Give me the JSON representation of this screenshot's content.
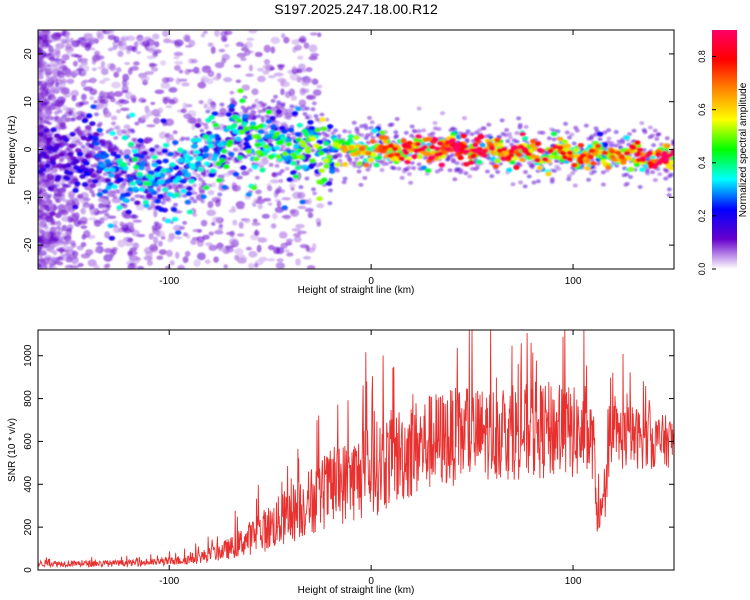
{
  "title": "S197.2025.247.18.00.R12",
  "chart_data": [
    {
      "type": "heatmap",
      "xlabel": "Height of straight line (km)",
      "ylabel": "Frequency (Hz)",
      "xlim": [
        -165,
        150
      ],
      "ylim": [
        -25,
        25
      ],
      "xticks": [
        -100,
        0,
        100
      ],
      "xtick_labels": [
        "-100",
        "0",
        "100"
      ],
      "yticks": [
        -20,
        -10,
        0,
        10,
        20
      ],
      "ytick_labels": [
        "-20",
        "-10",
        "0",
        "10",
        "20"
      ],
      "grid": false,
      "description_points": {
        "height_km": [
          -160,
          -140,
          -120,
          -100,
          -80,
          -60,
          -40,
          -20,
          0,
          20,
          40,
          60,
          80,
          100,
          120,
          148
        ],
        "peak_frequency_hz": [
          -2,
          -2,
          -4,
          -6,
          0,
          3,
          1,
          0,
          0,
          0,
          0,
          0,
          -1,
          -1,
          -1,
          -2
        ],
        "normalized_amplitude": [
          0.15,
          0.2,
          0.35,
          0.3,
          0.35,
          0.4,
          0.4,
          0.5,
          0.6,
          0.75,
          0.8,
          0.7,
          0.75,
          0.65,
          0.6,
          0.85
        ]
      },
      "colorbar": {
        "label": "Normalized spectral amplitude",
        "range": [
          0,
          0.9
        ],
        "ticks": [
          0.0,
          0.2,
          0.4,
          0.6,
          0.8
        ],
        "tick_labels": [
          "0.0",
          "0.2",
          "0.4",
          "0.6",
          "0.8"
        ],
        "colors": [
          "#ffffff",
          "#6600cc",
          "#0000ff",
          "#00ffff",
          "#00ff00",
          "#ffff00",
          "#ff8800",
          "#ff0000",
          "#ff0066"
        ]
      }
    },
    {
      "type": "line",
      "xlabel": "Height of straight line (km)",
      "ylabel": "SNR (10 * v/v)",
      "xlim": [
        -165,
        150
      ],
      "ylim": [
        0,
        1120
      ],
      "xticks": [
        -100,
        0,
        100
      ],
      "xtick_labels": [
        "-100",
        "0",
        "100"
      ],
      "yticks": [
        0,
        200,
        400,
        600,
        800,
        1000
      ],
      "ytick_labels": [
        "0",
        "200",
        "400",
        "600",
        "800",
        "1000"
      ],
      "grid": false,
      "series": [
        {
          "name": "SNR",
          "color": "#e8302f",
          "x": [
            -165,
            -150,
            -130,
            -110,
            -100,
            -90,
            -80,
            -70,
            -60,
            -50,
            -40,
            -30,
            -20,
            -10,
            0,
            10,
            20,
            30,
            40,
            50,
            60,
            70,
            80,
            90,
            100,
            110,
            112,
            115,
            120,
            130,
            140,
            150
          ],
          "y": [
            30,
            30,
            30,
            35,
            40,
            50,
            70,
            100,
            150,
            200,
            260,
            320,
            380,
            420,
            460,
            520,
            560,
            600,
            620,
            630,
            640,
            640,
            650,
            650,
            640,
            600,
            250,
            280,
            620,
            620,
            600,
            600
          ],
          "spread": [
            15,
            15,
            15,
            15,
            20,
            25,
            35,
            50,
            80,
            110,
            140,
            160,
            180,
            200,
            220,
            230,
            230,
            230,
            230,
            220,
            220,
            220,
            230,
            230,
            220,
            180,
            80,
            90,
            160,
            150,
            130,
            120
          ]
        }
      ]
    }
  ]
}
